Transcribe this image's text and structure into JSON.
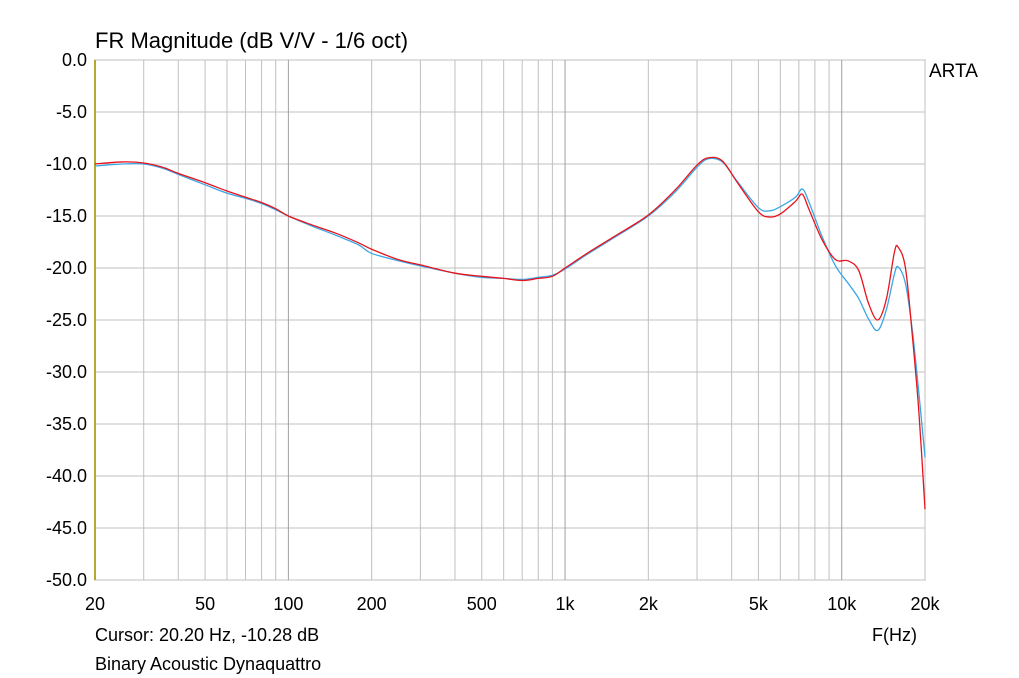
{
  "title": "FR Magnitude (dB V/V - 1/6 oct)",
  "side_label": "ARTA",
  "cursor_text": "Cursor: 20.20 Hz, -10.28 dB",
  "x_unit_label": "F(Hz)",
  "footer_label": "Binary Acoustic Dynaquattro",
  "colors": {
    "red_series": "#e8141c",
    "blue_series": "#3aa6e6",
    "grid": "#c0c0c0",
    "left_axis": "#b8a830"
  },
  "chart_data": {
    "type": "line",
    "title": "FR Magnitude (dB V/V - 1/6 oct)",
    "xlabel": "F(Hz)",
    "ylabel": "",
    "x_scale": "log",
    "xlim": [
      20,
      20000
    ],
    "ylim": [
      -50,
      0
    ],
    "grid": true,
    "x_ticks": [
      {
        "value": 20,
        "label": "20"
      },
      {
        "value": 50,
        "label": "50"
      },
      {
        "value": 100,
        "label": "100"
      },
      {
        "value": 200,
        "label": "200"
      },
      {
        "value": 500,
        "label": "500"
      },
      {
        "value": 1000,
        "label": "1k"
      },
      {
        "value": 2000,
        "label": "2k"
      },
      {
        "value": 5000,
        "label": "5k"
      },
      {
        "value": 10000,
        "label": "10k"
      },
      {
        "value": 20000,
        "label": "20k"
      }
    ],
    "y_ticks": [
      {
        "value": 0,
        "label": "0.0"
      },
      {
        "value": -5,
        "label": "-5.0"
      },
      {
        "value": -10,
        "label": "-10.0"
      },
      {
        "value": -15,
        "label": "-15.0"
      },
      {
        "value": -20,
        "label": "-20.0"
      },
      {
        "value": -25,
        "label": "-25.0"
      },
      {
        "value": -30,
        "label": "-30.0"
      },
      {
        "value": -35,
        "label": "-35.0"
      },
      {
        "value": -40,
        "label": "-40.0"
      },
      {
        "value": -45,
        "label": "-45.0"
      },
      {
        "value": -50,
        "label": "-50.0"
      }
    ],
    "series": [
      {
        "color": "#3aa6e6",
        "points": [
          [
            20,
            -10.2
          ],
          [
            25,
            -10.0
          ],
          [
            30,
            -10.0
          ],
          [
            35,
            -10.4
          ],
          [
            40,
            -11.0
          ],
          [
            50,
            -12.0
          ],
          [
            60,
            -12.8
          ],
          [
            70,
            -13.3
          ],
          [
            80,
            -13.8
          ],
          [
            90,
            -14.4
          ],
          [
            100,
            -15.0
          ],
          [
            120,
            -15.9
          ],
          [
            150,
            -16.9
          ],
          [
            180,
            -17.8
          ],
          [
            200,
            -18.6
          ],
          [
            250,
            -19.3
          ],
          [
            300,
            -19.8
          ],
          [
            400,
            -20.5
          ],
          [
            500,
            -20.9
          ],
          [
            600,
            -21.0
          ],
          [
            700,
            -21.1
          ],
          [
            800,
            -20.9
          ],
          [
            900,
            -20.7
          ],
          [
            1000,
            -20.1
          ],
          [
            1200,
            -18.7
          ],
          [
            1500,
            -17.1
          ],
          [
            2000,
            -15.0
          ],
          [
            2500,
            -12.7
          ],
          [
            3000,
            -10.3
          ],
          [
            3300,
            -9.5
          ],
          [
            3700,
            -9.8
          ],
          [
            4200,
            -11.7
          ],
          [
            5000,
            -14.2
          ],
          [
            5500,
            -14.5
          ],
          [
            6000,
            -14.1
          ],
          [
            6800,
            -13.2
          ],
          [
            7200,
            -12.4
          ],
          [
            7600,
            -13.6
          ],
          [
            8500,
            -17.0
          ],
          [
            9500,
            -19.8
          ],
          [
            10500,
            -21.4
          ],
          [
            11500,
            -22.9
          ],
          [
            12500,
            -24.9
          ],
          [
            13500,
            -26.0
          ],
          [
            14500,
            -24.0
          ],
          [
            15500,
            -20.6
          ],
          [
            16000,
            -19.9
          ],
          [
            17000,
            -21.5
          ],
          [
            18000,
            -26.0
          ],
          [
            19000,
            -32.0
          ],
          [
            20000,
            -38.2
          ]
        ]
      },
      {
        "color": "#e8141c",
        "points": [
          [
            20,
            -10.0
          ],
          [
            25,
            -9.8
          ],
          [
            30,
            -9.9
          ],
          [
            35,
            -10.3
          ],
          [
            40,
            -10.9
          ],
          [
            50,
            -11.8
          ],
          [
            60,
            -12.6
          ],
          [
            70,
            -13.2
          ],
          [
            80,
            -13.7
          ],
          [
            90,
            -14.3
          ],
          [
            100,
            -15.0
          ],
          [
            120,
            -15.8
          ],
          [
            150,
            -16.7
          ],
          [
            180,
            -17.6
          ],
          [
            200,
            -18.2
          ],
          [
            250,
            -19.2
          ],
          [
            300,
            -19.7
          ],
          [
            400,
            -20.5
          ],
          [
            500,
            -20.8
          ],
          [
            600,
            -21.0
          ],
          [
            700,
            -21.2
          ],
          [
            800,
            -21.0
          ],
          [
            900,
            -20.8
          ],
          [
            1000,
            -20.0
          ],
          [
            1200,
            -18.6
          ],
          [
            1500,
            -17.0
          ],
          [
            2000,
            -14.9
          ],
          [
            2500,
            -12.5
          ],
          [
            3000,
            -10.1
          ],
          [
            3300,
            -9.4
          ],
          [
            3700,
            -9.7
          ],
          [
            4200,
            -11.8
          ],
          [
            5000,
            -14.6
          ],
          [
            5500,
            -15.1
          ],
          [
            6000,
            -14.8
          ],
          [
            6800,
            -13.6
          ],
          [
            7200,
            -12.9
          ],
          [
            7600,
            -14.3
          ],
          [
            8500,
            -17.3
          ],
          [
            9500,
            -19.2
          ],
          [
            10500,
            -19.3
          ],
          [
            11500,
            -20.2
          ],
          [
            12500,
            -23.4
          ],
          [
            13500,
            -25.0
          ],
          [
            14500,
            -23.0
          ],
          [
            15500,
            -18.5
          ],
          [
            16000,
            -18.0
          ],
          [
            17000,
            -20.0
          ],
          [
            18000,
            -26.5
          ],
          [
            19000,
            -33.8
          ],
          [
            20000,
            -43.2
          ]
        ]
      }
    ]
  }
}
